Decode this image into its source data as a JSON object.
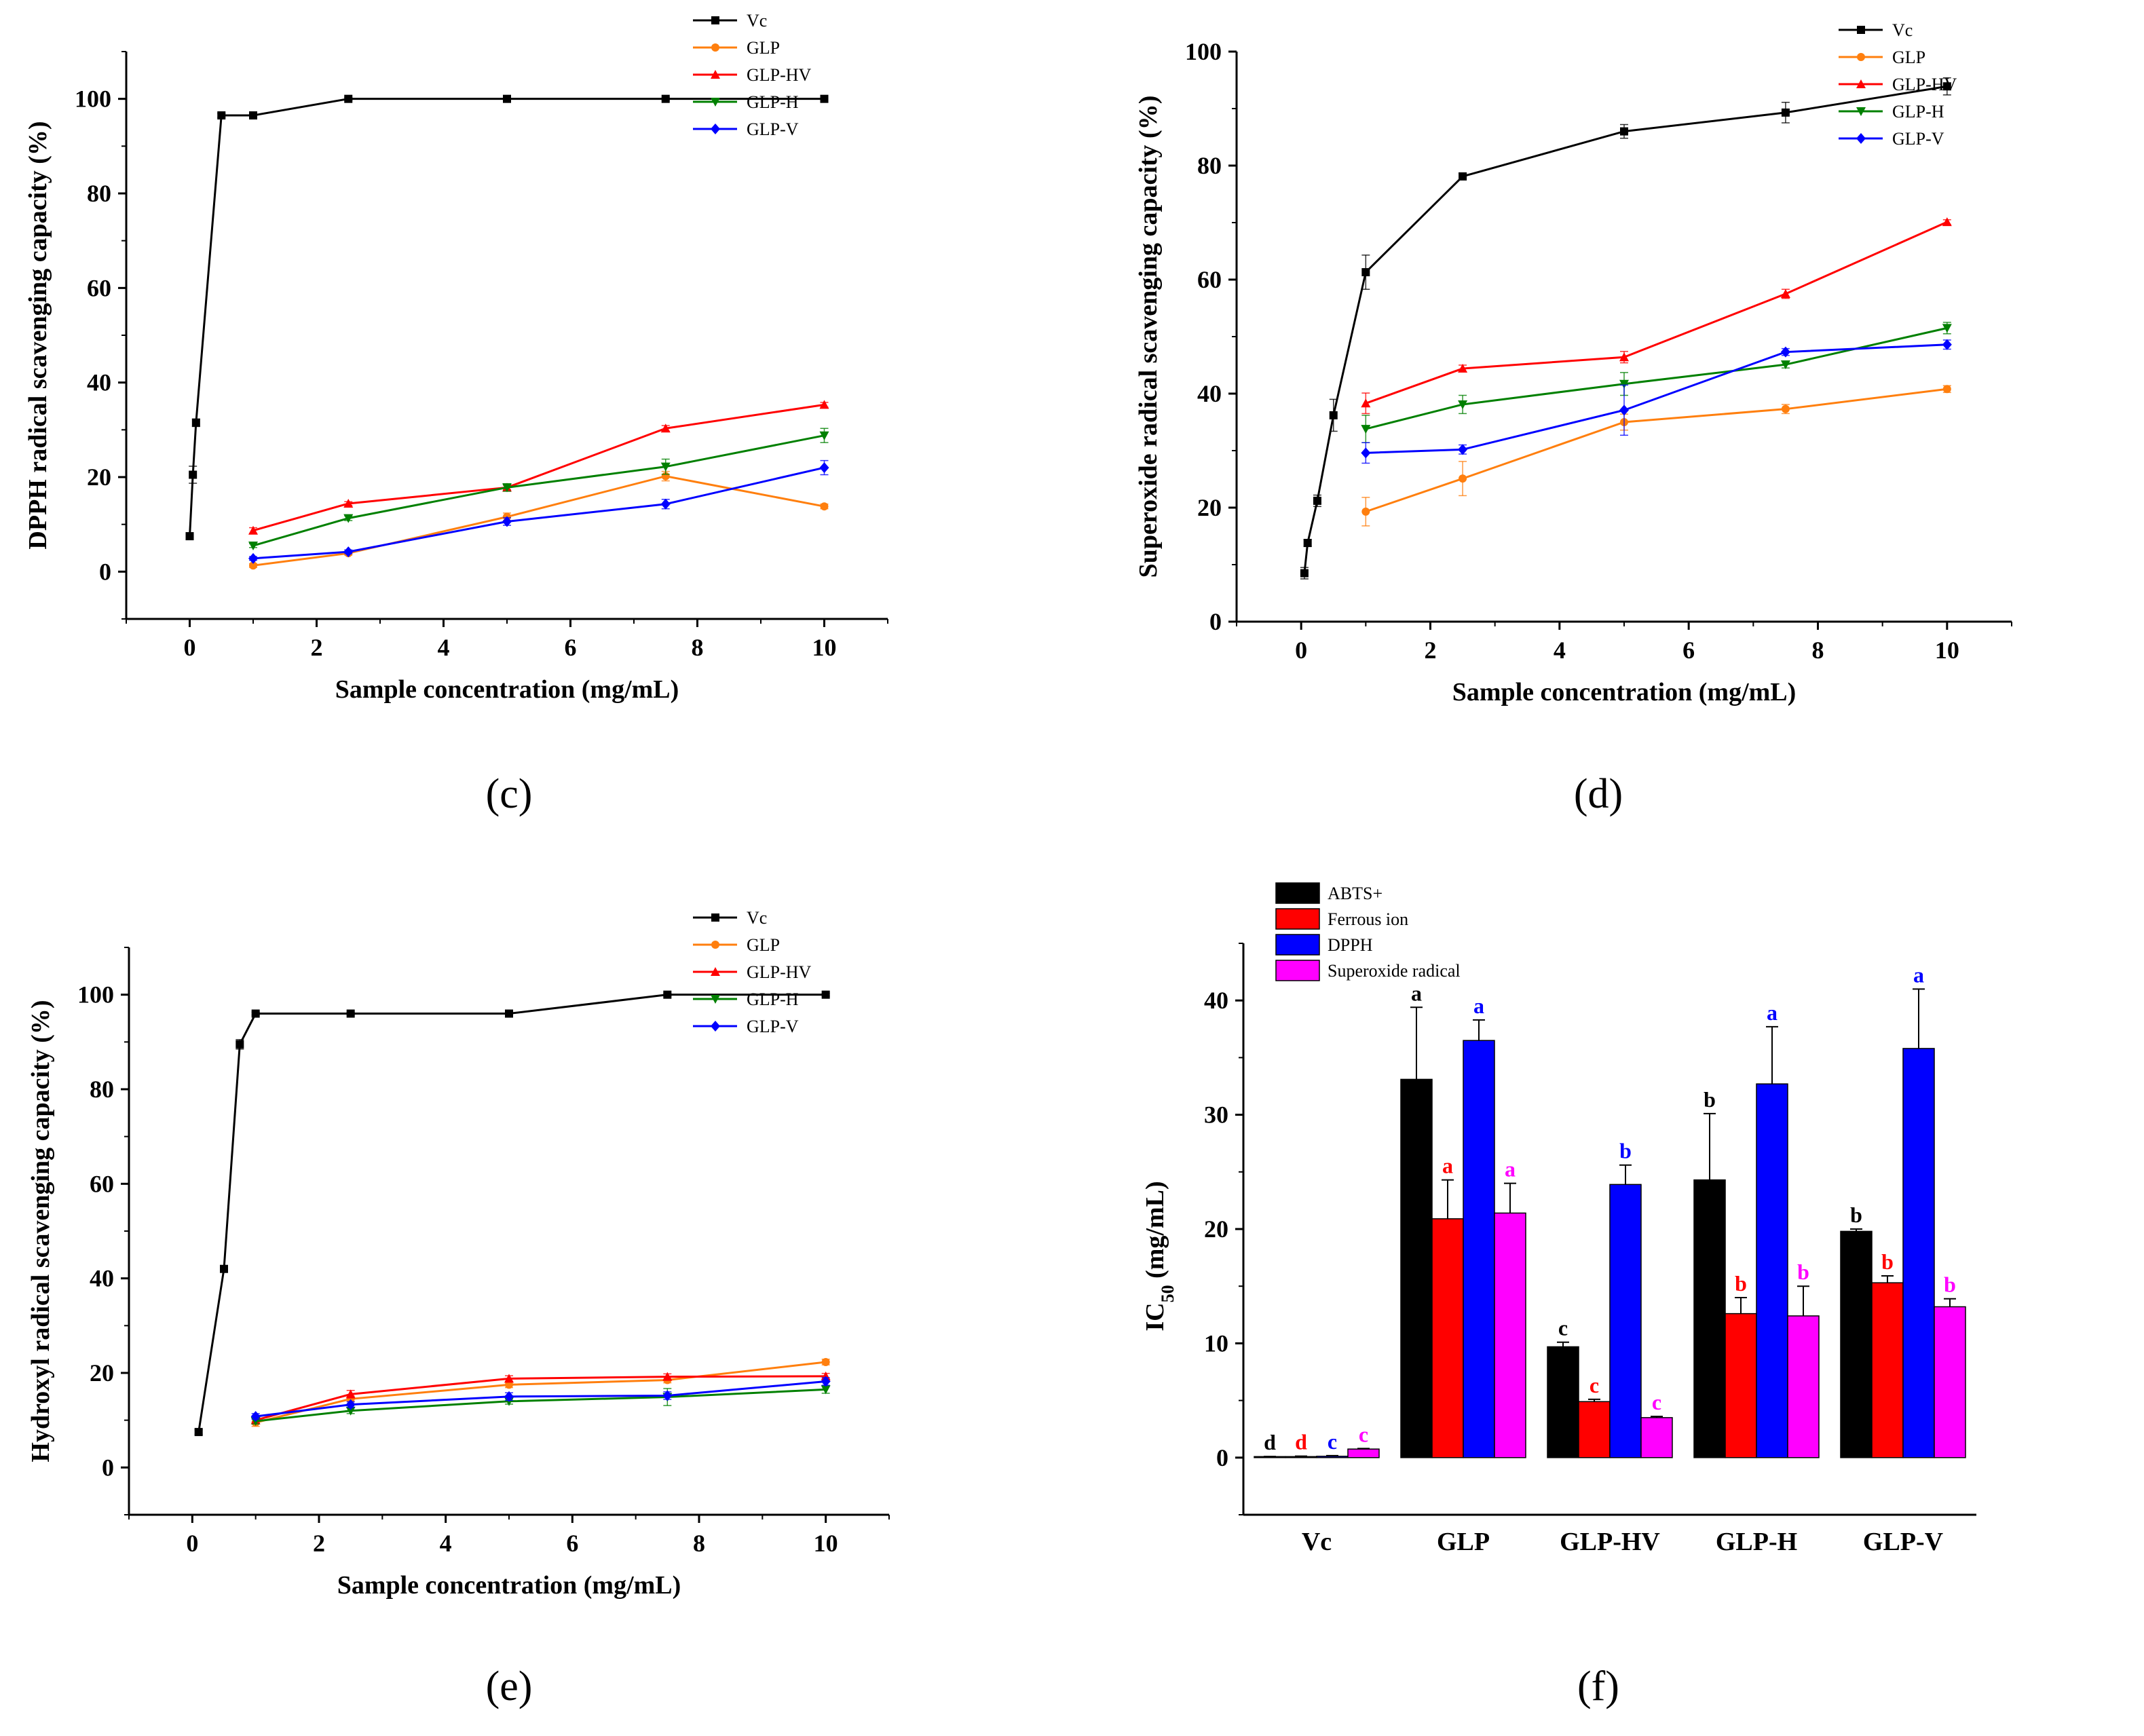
{
  "figure": {
    "panels": [
      {
        "key": "c",
        "label": "(c)"
      },
      {
        "key": "d",
        "label": "(d)"
      },
      {
        "key": "e",
        "label": "(e)"
      },
      {
        "key": "f",
        "label": "(f)"
      }
    ]
  },
  "colors": {
    "Vc": "#000000",
    "GLP": "#ff7f0e",
    "GLP-HV": "#ff0000",
    "GLP-H": "#008000",
    "GLP-V": "#0000ff",
    "ABTS+": "#000000",
    "Ferrous ion": "#ff0000",
    "DPPH": "#0000ff",
    "Superoxide radical": "#ff00ff"
  },
  "chart_data": [
    {
      "id": "c",
      "type": "line",
      "panel_label": "(c)",
      "xlabel": "Sample concentration (mg/mL)",
      "ylabel": "DPPH radical scavenging capacity (%)",
      "xlim": [
        -1,
        11
      ],
      "ylim": [
        -10,
        110
      ],
      "xticks": [
        0,
        2,
        4,
        6,
        8,
        10
      ],
      "yticks": [
        0,
        20,
        40,
        60,
        80,
        100
      ],
      "legend": "top-right",
      "series": [
        {
          "name": "Vc",
          "marker": "square",
          "x": [
            0,
            0.05,
            0.1,
            0.5,
            1,
            2.5,
            5,
            7.5,
            10
          ],
          "y": [
            7.5,
            20.5,
            31.5,
            96.5,
            96.5,
            100,
            100,
            100,
            100
          ],
          "err": [
            0.6,
            1.8,
            0.8,
            0.4,
            0.4,
            0.3,
            0.2,
            0.2,
            0.2
          ]
        },
        {
          "name": "GLP",
          "marker": "circle",
          "x": [
            1,
            2.5,
            5,
            7.5,
            10
          ],
          "y": [
            1.3,
            3.9,
            11.6,
            20.2,
            13.8
          ],
          "err": [
            0.4,
            0.4,
            0.8,
            1.0,
            0.5
          ]
        },
        {
          "name": "GLP-HV",
          "marker": "triangle-up",
          "x": [
            1,
            2.5,
            5,
            7.5,
            10
          ],
          "y": [
            8.7,
            14.4,
            17.8,
            30.3,
            35.3
          ],
          "err": [
            0.6,
            0.4,
            0.5,
            0.6,
            0.5
          ]
        },
        {
          "name": "GLP-H",
          "marker": "triangle-down",
          "x": [
            1,
            2.5,
            5,
            7.5,
            10
          ],
          "y": [
            5.5,
            11.3,
            17.8,
            22.2,
            28.8
          ],
          "err": [
            0.4,
            0.5,
            0.8,
            1.6,
            1.5
          ]
        },
        {
          "name": "GLP-V",
          "marker": "diamond",
          "x": [
            1,
            2.5,
            5,
            7.5,
            10
          ],
          "y": [
            2.8,
            4.2,
            10.6,
            14.3,
            22.0
          ],
          "err": [
            0.4,
            0.4,
            0.8,
            1.0,
            1.5
          ]
        }
      ]
    },
    {
      "id": "d",
      "type": "line",
      "panel_label": "(d)",
      "xlabel": "Sample concentration (mg/mL)",
      "ylabel": "Superoxide radical scavenging capacity (%)",
      "xlim": [
        -1,
        11
      ],
      "ylim": [
        0,
        100
      ],
      "xticks": [
        0,
        2,
        4,
        6,
        8,
        10
      ],
      "yticks": [
        0,
        20,
        40,
        60,
        80,
        100
      ],
      "legend": "top-right",
      "series": [
        {
          "name": "Vc",
          "marker": "square",
          "x": [
            0.05,
            0.1,
            0.25,
            0.5,
            1,
            2.5,
            5,
            7.5,
            10
          ],
          "y": [
            8.5,
            13.8,
            21.2,
            36.2,
            61.3,
            78.1,
            86.0,
            89.3,
            93.9
          ],
          "err": [
            1.0,
            0.6,
            1.0,
            2.8,
            3.0,
            0.6,
            1.2,
            1.8,
            1.5
          ]
        },
        {
          "name": "GLP",
          "marker": "circle",
          "x": [
            1,
            2.5,
            5,
            7.5,
            10
          ],
          "y": [
            19.3,
            25.1,
            35.0,
            37.3,
            40.8
          ],
          "err": [
            2.5,
            3.0,
            1.4,
            0.8,
            0.6
          ]
        },
        {
          "name": "GLP-HV",
          "marker": "triangle-up",
          "x": [
            1,
            2.5,
            5,
            7.5,
            10
          ],
          "y": [
            38.3,
            44.4,
            46.4,
            57.5,
            70.1
          ],
          "err": [
            1.8,
            0.6,
            1.0,
            0.8,
            0.4
          ]
        },
        {
          "name": "GLP-H",
          "marker": "triangle-down",
          "x": [
            1,
            2.5,
            5,
            7.5,
            10
          ],
          "y": [
            33.8,
            38.1,
            41.7,
            45.1,
            51.5
          ],
          "err": [
            2.4,
            1.6,
            2.0,
            0.6,
            1.0
          ]
        },
        {
          "name": "GLP-V",
          "marker": "diamond",
          "x": [
            1,
            2.5,
            5,
            7.5,
            10
          ],
          "y": [
            29.6,
            30.2,
            37.1,
            47.3,
            48.6
          ],
          "err": [
            1.8,
            0.8,
            4.4,
            0.6,
            0.8
          ]
        }
      ]
    },
    {
      "id": "e",
      "type": "line",
      "panel_label": "(e)",
      "xlabel": "Sample concentration (mg/mL)",
      "ylabel": "Hydroxyl radical scavenging capacity (%)",
      "xlim": [
        -1,
        11
      ],
      "ylim": [
        -10,
        110
      ],
      "xticks": [
        0,
        2,
        4,
        6,
        8,
        10
      ],
      "yticks": [
        0,
        20,
        40,
        60,
        80,
        100
      ],
      "legend": "top-right",
      "series": [
        {
          "name": "Vc",
          "marker": "square",
          "x": [
            0.1,
            0.5,
            0.75,
            1,
            2.5,
            5,
            7.5,
            10
          ],
          "y": [
            7.5,
            42.0,
            89.5,
            96.0,
            96.0,
            96.0,
            100,
            100
          ],
          "err": [
            0.5,
            0.5,
            1.0,
            0.3,
            0.3,
            0.3,
            0.3,
            0.3
          ]
        },
        {
          "name": "GLP",
          "marker": "circle",
          "x": [
            1,
            2.5,
            5,
            7.5,
            10
          ],
          "y": [
            9.5,
            14.5,
            17.5,
            18.5,
            22.3
          ],
          "err": [
            0.8,
            0.6,
            0.6,
            0.6,
            0.6
          ]
        },
        {
          "name": "GLP-HV",
          "marker": "triangle-up",
          "x": [
            1,
            2.5,
            5,
            7.5,
            10
          ],
          "y": [
            10.0,
            15.5,
            18.8,
            19.2,
            19.3
          ],
          "err": [
            0.6,
            0.8,
            0.6,
            0.6,
            0.6
          ]
        },
        {
          "name": "GLP-H",
          "marker": "triangle-down",
          "x": [
            1,
            2.5,
            5,
            7.5,
            10
          ],
          "y": [
            9.8,
            12.0,
            14.0,
            14.9,
            16.5
          ],
          "err": [
            0.6,
            0.6,
            0.6,
            1.8,
            0.8
          ]
        },
        {
          "name": "GLP-V",
          "marker": "diamond",
          "x": [
            1,
            2.5,
            5,
            7.5,
            10
          ],
          "y": [
            10.8,
            13.3,
            15.0,
            15.2,
            18.2
          ],
          "err": [
            0.6,
            0.6,
            0.8,
            0.8,
            0.8
          ]
        }
      ]
    },
    {
      "id": "f",
      "type": "bar",
      "panel_label": "(f)",
      "xlabel": "",
      "ylabel_main": "IC",
      "ylabel_sub": "50",
      "ylabel_rest": " (mg/mL)",
      "ylim": [
        -5,
        45
      ],
      "yticks": [
        0,
        10,
        20,
        30,
        40
      ],
      "legend": "top-left",
      "categories": [
        "Vc",
        "GLP",
        "GLP-HV",
        "GLP-H",
        "GLP-V"
      ],
      "series": [
        {
          "name": "ABTS+",
          "values": [
            0.05,
            33.1,
            9.7,
            24.3,
            19.8
          ],
          "err": [
            0.05,
            6.3,
            0.4,
            5.8,
            0.2
          ],
          "letters": [
            "d",
            "a",
            "c",
            "b",
            "b"
          ]
        },
        {
          "name": "Ferrous ion",
          "values": [
            0.08,
            20.9,
            4.9,
            12.6,
            15.3
          ],
          "err": [
            0.05,
            3.4,
            0.2,
            1.4,
            0.6
          ],
          "letters": [
            "d",
            "a",
            "c",
            "b",
            "b"
          ]
        },
        {
          "name": "DPPH",
          "values": [
            0.12,
            36.5,
            23.9,
            32.7,
            35.8
          ],
          "err": [
            0.05,
            1.8,
            1.7,
            5.0,
            5.2
          ],
          "letters": [
            "c",
            "a",
            "b",
            "a",
            "a"
          ]
        },
        {
          "name": "Superoxide radical",
          "values": [
            0.75,
            21.4,
            3.5,
            12.4,
            13.2
          ],
          "err": [
            0.05,
            2.6,
            0.1,
            2.6,
            0.7
          ],
          "letters": [
            "c",
            "a",
            "c",
            "b",
            "b"
          ]
        }
      ]
    }
  ]
}
